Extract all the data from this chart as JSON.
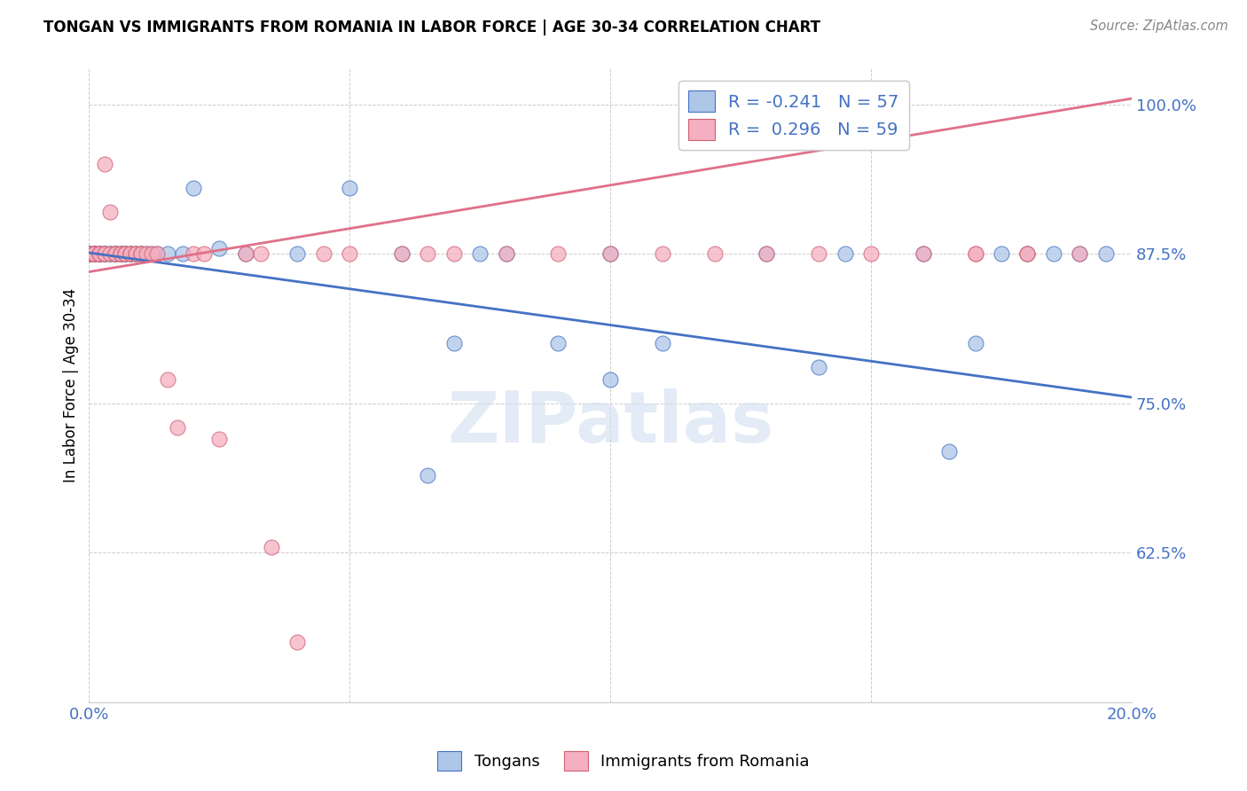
{
  "title": "TONGAN VS IMMIGRANTS FROM ROMANIA IN LABOR FORCE | AGE 30-34 CORRELATION CHART",
  "source": "Source: ZipAtlas.com",
  "ylabel": "In Labor Force | Age 30-34",
  "xlim": [
    0.0,
    0.2
  ],
  "ylim": [
    0.5,
    1.03
  ],
  "yticks": [
    0.625,
    0.75,
    0.875,
    1.0
  ],
  "xticks": [
    0.0,
    0.05,
    0.1,
    0.15,
    0.2
  ],
  "legend_r_tongan": "-0.241",
  "legend_n_tongan": "57",
  "legend_r_romania": "0.296",
  "legend_n_romania": "59",
  "tongan_fill_color": "#aec6e8",
  "tongan_edge_color": "#4472c4",
  "romania_fill_color": "#f4afc0",
  "romania_edge_color": "#d06070",
  "tongan_line_color": "#4472c4",
  "romania_line_color": "#e07088",
  "watermark": "ZIPatlas",
  "tongan_line_x0": 0.0,
  "tongan_line_y0": 0.876,
  "tongan_line_x1": 0.2,
  "tongan_line_y1": 0.755,
  "romania_line_x0": 0.0,
  "romania_line_y0": 0.86,
  "romania_line_x1": 0.2,
  "romania_line_y1": 1.005,
  "tongan_x": [
    0.0,
    0.0,
    0.0,
    0.001,
    0.001,
    0.001,
    0.001,
    0.002,
    0.002,
    0.002,
    0.003,
    0.003,
    0.003,
    0.004,
    0.004,
    0.005,
    0.005,
    0.005,
    0.006,
    0.006,
    0.007,
    0.007,
    0.008,
    0.008,
    0.009,
    0.01,
    0.01,
    0.011,
    0.012,
    0.013,
    0.015,
    0.018,
    0.02,
    0.025,
    0.03,
    0.04,
    0.05,
    0.06,
    0.065,
    0.07,
    0.075,
    0.08,
    0.09,
    0.1,
    0.1,
    0.11,
    0.13,
    0.14,
    0.145,
    0.16,
    0.165,
    0.17,
    0.175,
    0.18,
    0.185,
    0.19,
    0.195
  ],
  "tongan_y": [
    0.875,
    0.875,
    0.875,
    0.875,
    0.875,
    0.875,
    0.875,
    0.875,
    0.875,
    0.875,
    0.875,
    0.875,
    0.875,
    0.875,
    0.875,
    0.875,
    0.875,
    0.875,
    0.875,
    0.875,
    0.875,
    0.875,
    0.875,
    0.875,
    0.875,
    0.875,
    0.875,
    0.875,
    0.875,
    0.875,
    0.875,
    0.875,
    0.93,
    0.88,
    0.875,
    0.875,
    0.93,
    0.875,
    0.69,
    0.8,
    0.875,
    0.875,
    0.8,
    0.77,
    0.875,
    0.8,
    0.875,
    0.78,
    0.875,
    0.875,
    0.71,
    0.8,
    0.875,
    0.875,
    0.875,
    0.875,
    0.875
  ],
  "romania_x": [
    0.0,
    0.0,
    0.0,
    0.0,
    0.001,
    0.001,
    0.001,
    0.001,
    0.002,
    0.002,
    0.002,
    0.003,
    0.003,
    0.003,
    0.004,
    0.004,
    0.005,
    0.005,
    0.006,
    0.006,
    0.007,
    0.007,
    0.008,
    0.008,
    0.009,
    0.009,
    0.01,
    0.01,
    0.011,
    0.012,
    0.013,
    0.015,
    0.017,
    0.02,
    0.022,
    0.025,
    0.03,
    0.033,
    0.035,
    0.04,
    0.045,
    0.05,
    0.06,
    0.065,
    0.07,
    0.08,
    0.09,
    0.1,
    0.11,
    0.12,
    0.13,
    0.14,
    0.15,
    0.16,
    0.17,
    0.17,
    0.18,
    0.18,
    0.19
  ],
  "romania_y": [
    0.875,
    0.875,
    0.875,
    0.875,
    0.875,
    0.875,
    0.875,
    0.875,
    0.875,
    0.875,
    0.875,
    0.95,
    0.875,
    0.875,
    0.91,
    0.875,
    0.875,
    0.875,
    0.875,
    0.875,
    0.875,
    0.875,
    0.875,
    0.875,
    0.875,
    0.875,
    0.875,
    0.875,
    0.875,
    0.875,
    0.875,
    0.77,
    0.73,
    0.875,
    0.875,
    0.72,
    0.875,
    0.875,
    0.63,
    0.55,
    0.875,
    0.875,
    0.875,
    0.875,
    0.875,
    0.875,
    0.875,
    0.875,
    0.875,
    0.875,
    0.875,
    0.875,
    0.875,
    0.875,
    0.875,
    0.875,
    0.875,
    0.875,
    0.875
  ]
}
